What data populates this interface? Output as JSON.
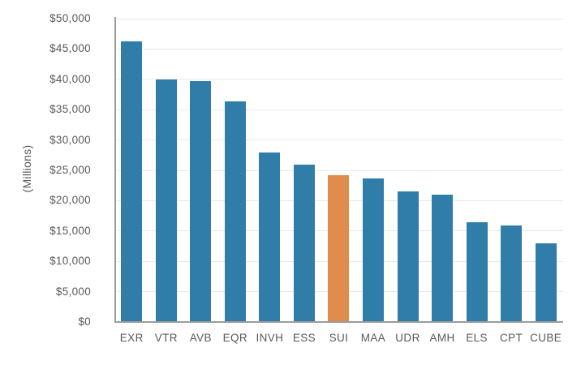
{
  "chart_data": {
    "type": "bar",
    "title": "",
    "xlabel": "",
    "ylabel": "(Millions)",
    "ylim": [
      0,
      50000
    ],
    "ytick_step": 5000,
    "grid": true,
    "legend_position": "none",
    "categories": [
      "EXR",
      "VTR",
      "AVB",
      "EQR",
      "INVH",
      "ESS",
      "SUI",
      "MAA",
      "UDR",
      "AMH",
      "ELS",
      "CPT",
      "CUBE"
    ],
    "values": [
      46300,
      40000,
      39700,
      36400,
      28000,
      25900,
      24200,
      23600,
      21500,
      21000,
      16500,
      15900,
      13000
    ],
    "highlight_category": "SUI",
    "y_tick_labels": [
      "$0",
      "$5,000",
      "$10,000",
      "$15,000",
      "$20,000",
      "$25,000",
      "$30,000",
      "$35,000",
      "$40,000",
      "$45,000",
      "$50,000"
    ],
    "colors": {
      "bar": "#2F7DA8",
      "highlight_bar": "#E08C4D",
      "gridline": "#E8E8E8",
      "axis": "#9C9C9C",
      "text": "#595959"
    }
  }
}
